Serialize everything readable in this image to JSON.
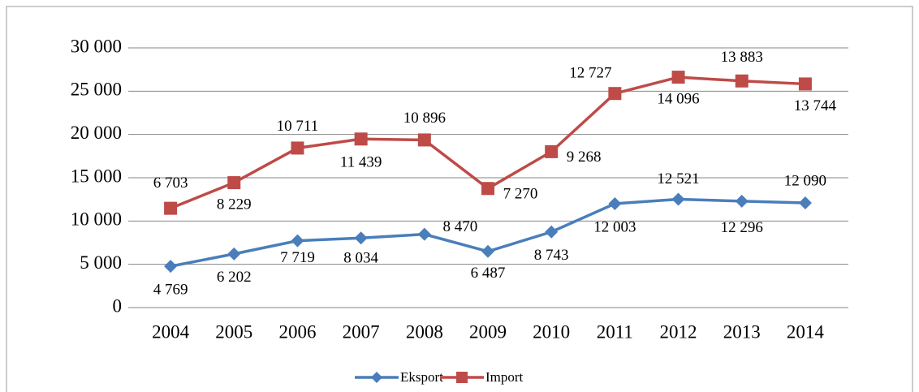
{
  "chart_data": {
    "type": "line",
    "stacked": true,
    "categories": [
      "2004",
      "2005",
      "2006",
      "2007",
      "2008",
      "2009",
      "2010",
      "2011",
      "2012",
      "2013",
      "2014"
    ],
    "series": [
      {
        "name": "Eksport",
        "color": "#4a7ebb",
        "marker": "diamond",
        "values": [
          4769,
          6202,
          7719,
          8034,
          8470,
          6487,
          8743,
          12003,
          12521,
          12296,
          12090
        ],
        "value_labels": [
          "4 769",
          "6 202",
          "7 719",
          "8 034",
          "8 470",
          "6 487",
          "8 743",
          "12 003",
          "12 521",
          "12 296",
          "12 090"
        ]
      },
      {
        "name": "Import",
        "color": "#be4b48",
        "marker": "square",
        "values": [
          6703,
          8229,
          10711,
          11439,
          10896,
          7270,
          9268,
          12727,
          14096,
          13883,
          13744
        ],
        "value_labels": [
          "6 703",
          "8 229",
          "10 711",
          "11 439",
          "10 896",
          "7 270",
          "9 268",
          "12 727",
          "14 096",
          "13 883",
          "13 744"
        ]
      }
    ],
    "ylim": [
      0,
      30000
    ],
    "yticks": [
      0,
      {
        "value": 5000,
        "label": "5 000"
      },
      {
        "value": 10000,
        "label": "10 000"
      },
      {
        "value": 15000,
        "label": "15 000"
      },
      {
        "value": 20000,
        "label": "20 000"
      },
      {
        "value": 25000,
        "label": "25 000"
      },
      {
        "value": 30000,
        "label": "30 000"
      }
    ],
    "grid": true,
    "legend": "bottom"
  }
}
